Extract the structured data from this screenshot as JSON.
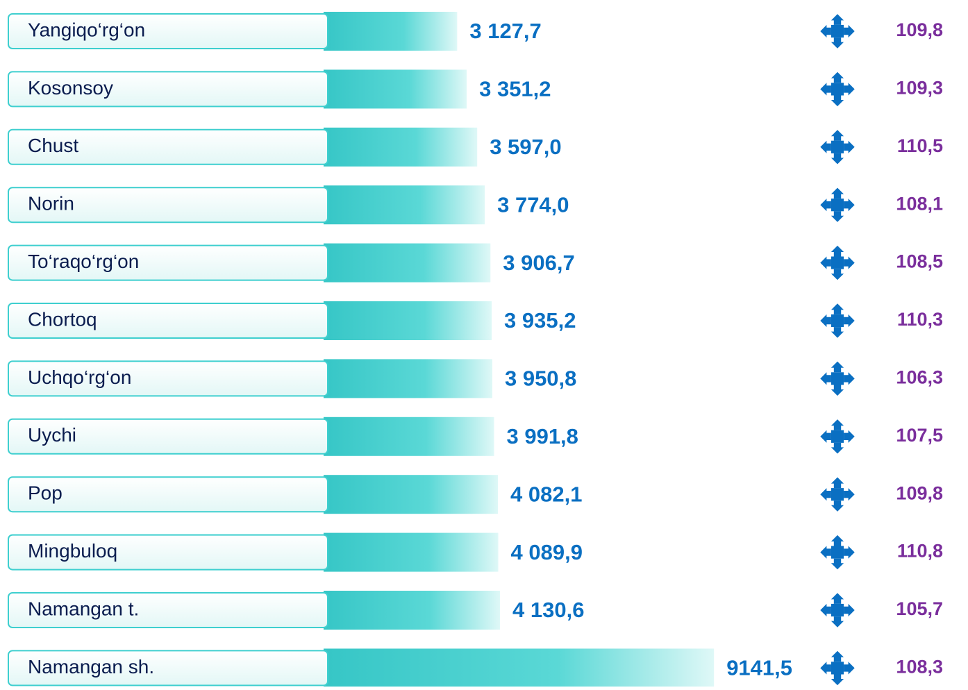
{
  "chart_data": {
    "type": "bar",
    "categories": [
      "Yangiqo‘rg‘on",
      "Kosonsoy",
      "Chust",
      "Norin",
      "To‘raqo‘rg‘on",
      "Chortoq",
      "Uchqo‘rg‘on",
      "Uychi",
      "Pop",
      "Mingbuloq",
      "Namangan t.",
      "Namangan sh."
    ],
    "values": [
      3127.7,
      3351.2,
      3597.0,
      3774.0,
      3906.7,
      3935.2,
      3950.8,
      3991.8,
      4082.1,
      4089.9,
      4130.6,
      9141.5
    ],
    "value_labels": [
      "3 127,7",
      "3 351,2",
      "3 597,0",
      "3 774,0",
      "3 906,7",
      "3 935,2",
      "3 950,8",
      "3 991,8",
      "4 082,1",
      "4 089,9",
      "4 130,6",
      "9141,5"
    ],
    "color": "#3ecfcf",
    "label_color": "#0a6fc2",
    "growth": {
      "values": [
        109.8,
        109.3,
        110.5,
        108.1,
        108.5,
        110.3,
        106.3,
        107.5,
        109.8,
        110.8,
        105.7,
        108.3
      ],
      "value_labels": [
        "109,8",
        "109,3",
        "110,5",
        "108,1",
        "108,5",
        "110,3",
        "106,3",
        "107,5",
        "109,8",
        "110,8",
        "105,7",
        "108,3"
      ],
      "color": "#7a2e9c",
      "icon_color": "#0a6fc2"
    }
  }
}
